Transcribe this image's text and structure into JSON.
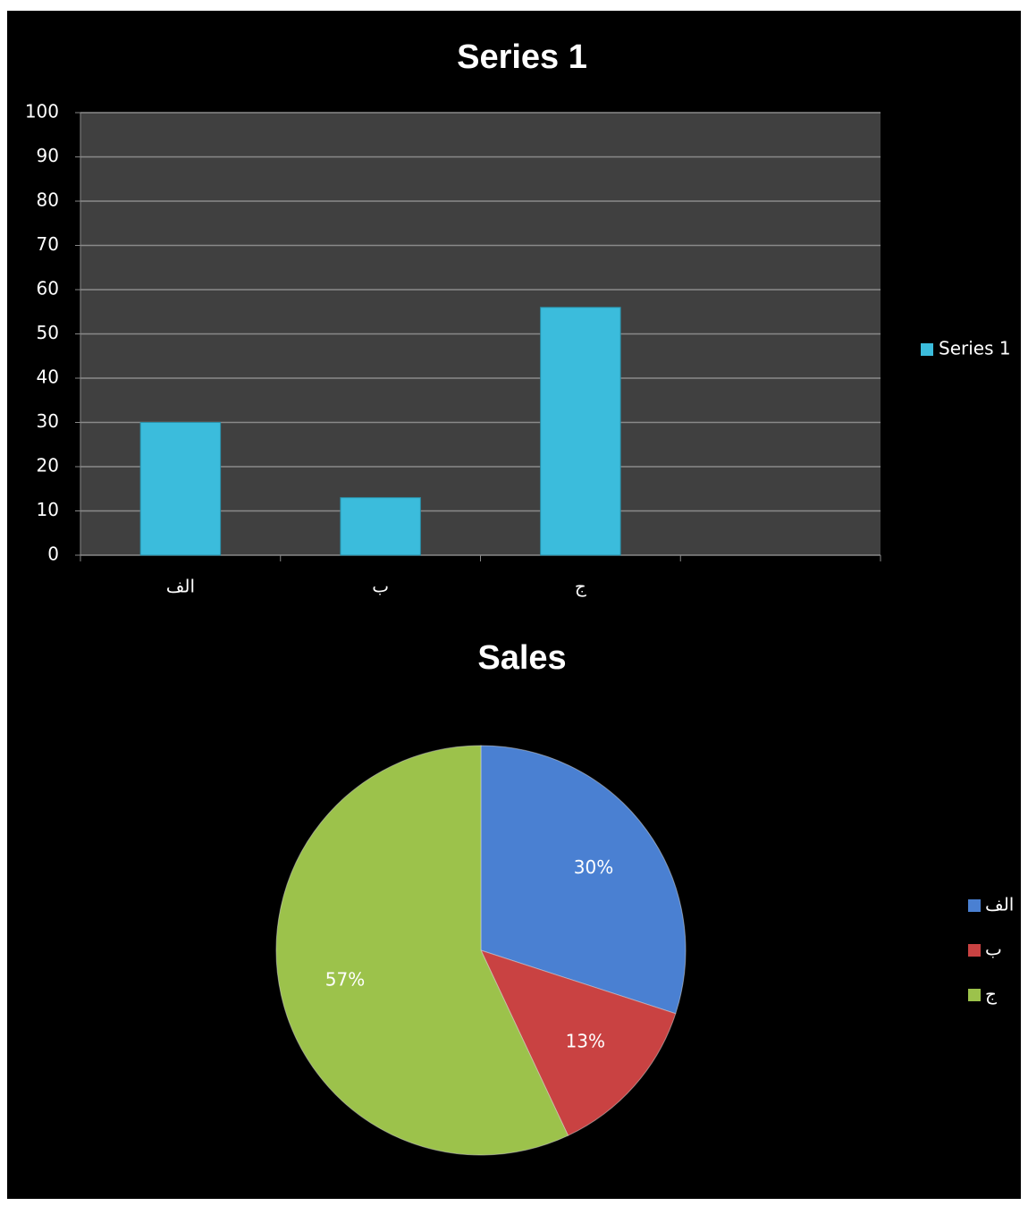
{
  "chart_data": [
    {
      "type": "bar",
      "title": "Series 1",
      "categories": [
        "الف",
        "ب",
        "ج",
        null
      ],
      "series": [
        {
          "name": "Series 1",
          "color": "#3bbcdc",
          "values": [
            30,
            13,
            56,
            null
          ]
        }
      ],
      "ylim": [
        0,
        100
      ],
      "yticks": [
        0,
        10,
        20,
        30,
        40,
        50,
        60,
        70,
        80,
        90,
        100
      ],
      "grid": true,
      "legend": "right"
    },
    {
      "type": "pie",
      "title": "Sales",
      "categories": [
        "الف",
        "ب",
        "ج"
      ],
      "values": [
        30,
        13,
        57
      ],
      "value_labels": [
        "30%",
        "13%",
        "57%"
      ],
      "colors": [
        "#4a80d2",
        "#c94242",
        "#9cc24b"
      ],
      "legend": "right"
    }
  ]
}
